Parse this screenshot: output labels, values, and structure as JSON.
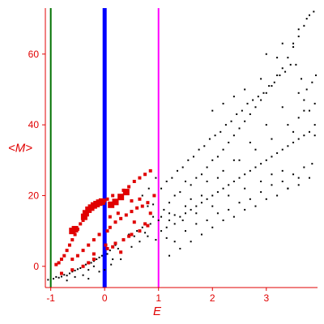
{
  "chart_data": {
    "type": "scatter",
    "title": "",
    "xlabel": "E",
    "ylabel": "<M>",
    "xlim": [
      -1.1,
      3.95
    ],
    "ylim": [
      -6,
      73
    ],
    "x_ticks": [
      -1,
      0,
      1,
      2,
      3
    ],
    "x_tick_labels": [
      "-1",
      "0",
      "1",
      "2",
      "3"
    ],
    "y_ticks": [
      0,
      20,
      40,
      60
    ],
    "y_tick_labels": [
      "0",
      "20",
      "40",
      "60"
    ],
    "grid": false,
    "legend": "none",
    "colors": {
      "axes": "#e00000",
      "black_points": "#000000",
      "red_points": "#e00000",
      "line_green": "#007000",
      "line_blue": "#0000ff",
      "line_magenta": "#ff00ff"
    },
    "vertical_lines": [
      {
        "x": -1.0,
        "color": "#007000"
      },
      {
        "x": 0.0,
        "color": "#0000ff"
      },
      {
        "x": 1.0,
        "color": "#ff00ff"
      }
    ],
    "series": [
      {
        "color": "#000000",
        "marker": "dot",
        "points": [
          [
            -1.05,
            -3.8
          ],
          [
            -0.95,
            -3.5
          ],
          [
            -0.9,
            -3.0
          ],
          [
            -0.85,
            -3.2
          ],
          [
            -0.8,
            -2.9
          ],
          [
            -0.75,
            -2.4
          ],
          [
            -0.7,
            -2.6
          ],
          [
            -0.65,
            -2.0
          ],
          [
            -0.6,
            -1.5
          ],
          [
            -0.55,
            -1.2
          ],
          [
            -0.5,
            -0.8
          ],
          [
            -0.45,
            -0.5
          ],
          [
            -0.4,
            0.2
          ],
          [
            -0.35,
            0.5
          ],
          [
            -0.3,
            -1.0
          ],
          [
            -0.25,
            1.0
          ],
          [
            -0.2,
            1.5
          ],
          [
            -0.15,
            2.0
          ],
          [
            -0.1,
            2.5
          ],
          [
            -0.05,
            3.0
          ],
          [
            0.05,
            3.5
          ],
          [
            0.1,
            4.5
          ],
          [
            0.15,
            2.0
          ],
          [
            0.2,
            6.0
          ],
          [
            0.25,
            5.0
          ],
          [
            0.35,
            7.5
          ],
          [
            0.45,
            9.0
          ],
          [
            0.55,
            8.5
          ],
          [
            0.6,
            10.0
          ],
          [
            0.7,
            11.0
          ],
          [
            0.75,
            9.5
          ],
          [
            0.85,
            12.0
          ],
          [
            -0.7,
            -4.0
          ],
          [
            -0.55,
            -3.0
          ],
          [
            -0.4,
            -2.5
          ],
          [
            -0.3,
            -3.5
          ],
          [
            -0.2,
            0.0
          ],
          [
            -0.1,
            -1.5
          ],
          [
            0.0,
            -1.0
          ],
          [
            0.12,
            0.5
          ],
          [
            0.3,
            2.0
          ],
          [
            0.5,
            5.5
          ],
          [
            0.65,
            7.0
          ],
          [
            0.8,
            8.5
          ],
          [
            0.95,
            7.5
          ],
          [
            0.9,
            14.0
          ],
          [
            0.8,
            17.0
          ],
          [
            0.7,
            20.0
          ],
          [
            0.82,
            22.0
          ],
          [
            0.95,
            25.0
          ],
          [
            0.9,
            17.5
          ],
          [
            1.0,
            13.0
          ],
          [
            1.05,
            14.0
          ],
          [
            1.1,
            16.0
          ],
          [
            1.2,
            18.0
          ],
          [
            1.3,
            20.0
          ],
          [
            1.4,
            21.0
          ],
          [
            1.5,
            24.0
          ],
          [
            1.6,
            23.0
          ],
          [
            1.7,
            25.0
          ],
          [
            1.8,
            26.0
          ],
          [
            1.9,
            28.0
          ],
          [
            2.0,
            30.0
          ],
          [
            2.1,
            31.0
          ],
          [
            2.2,
            33.0
          ],
          [
            2.3,
            35.0
          ],
          [
            2.4,
            37.0
          ],
          [
            2.5,
            39.0
          ],
          [
            2.6,
            41.0
          ],
          [
            2.7,
            43.0
          ],
          [
            2.8,
            45.0
          ],
          [
            2.9,
            47.0
          ],
          [
            3.0,
            49.0
          ],
          [
            3.1,
            51.0
          ],
          [
            3.2,
            54.0
          ],
          [
            3.3,
            56.0
          ],
          [
            3.4,
            59.0
          ],
          [
            3.5,
            62.0
          ],
          [
            3.6,
            65.0
          ],
          [
            3.7,
            68.0
          ],
          [
            3.8,
            71.0
          ],
          [
            3.88,
            72.0
          ],
          [
            1.05,
            22.0
          ],
          [
            1.15,
            24.0
          ],
          [
            1.25,
            25.0
          ],
          [
            1.35,
            27.0
          ],
          [
            1.45,
            28.0
          ],
          [
            1.55,
            30.0
          ],
          [
            1.65,
            31.0
          ],
          [
            1.75,
            33.0
          ],
          [
            1.85,
            34.0
          ],
          [
            1.95,
            36.0
          ],
          [
            2.05,
            37.0
          ],
          [
            2.15,
            38.0
          ],
          [
            2.25,
            40.0
          ],
          [
            2.35,
            41.0
          ],
          [
            2.45,
            43.0
          ],
          [
            2.55,
            44.0
          ],
          [
            2.65,
            46.0
          ],
          [
            2.75,
            47.0
          ],
          [
            2.85,
            48.0
          ],
          [
            2.95,
            49.0
          ],
          [
            3.05,
            51.0
          ],
          [
            3.15,
            52.0
          ],
          [
            3.25,
            54.0
          ],
          [
            3.35,
            55.0
          ],
          [
            3.45,
            57.0
          ],
          [
            3.55,
            57.0
          ],
          [
            3.65,
            53.0
          ],
          [
            3.75,
            50.0
          ],
          [
            3.85,
            52.0
          ],
          [
            3.92,
            54.0
          ],
          [
            1.05,
            10.0
          ],
          [
            1.15,
            11.0
          ],
          [
            1.2,
            13.0
          ],
          [
            1.3,
            12.0
          ],
          [
            1.4,
            14.0
          ],
          [
            1.5,
            15.0
          ],
          [
            1.6,
            16.0
          ],
          [
            1.7,
            17.0
          ],
          [
            1.8,
            18.0
          ],
          [
            1.9,
            19.0
          ],
          [
            2.0,
            20.0
          ],
          [
            2.1,
            21.0
          ],
          [
            2.2,
            22.0
          ],
          [
            2.3,
            23.0
          ],
          [
            2.4,
            24.0
          ],
          [
            2.5,
            25.0
          ],
          [
            2.6,
            26.0
          ],
          [
            2.7,
            27.0
          ],
          [
            2.8,
            28.0
          ],
          [
            2.9,
            29.0
          ],
          [
            3.0,
            30.0
          ],
          [
            3.1,
            31.0
          ],
          [
            3.2,
            32.0
          ],
          [
            3.3,
            33.0
          ],
          [
            3.4,
            34.0
          ],
          [
            3.5,
            35.0
          ],
          [
            3.6,
            36.0
          ],
          [
            3.7,
            37.0
          ],
          [
            3.8,
            38.0
          ],
          [
            3.9,
            37.0
          ],
          [
            1.15,
            8.0
          ],
          [
            1.3,
            7.0
          ],
          [
            1.5,
            10.0
          ],
          [
            1.7,
            12.0
          ],
          [
            1.9,
            13.0
          ],
          [
            2.1,
            15.0
          ],
          [
            2.3,
            16.0
          ],
          [
            2.5,
            18.0
          ],
          [
            2.7,
            19.0
          ],
          [
            2.9,
            21.0
          ],
          [
            3.1,
            23.0
          ],
          [
            3.3,
            24.0
          ],
          [
            3.5,
            26.0
          ],
          [
            3.7,
            28.0
          ],
          [
            3.85,
            29.0
          ],
          [
            1.2,
            3.0
          ],
          [
            1.4,
            5.0
          ],
          [
            1.6,
            7.0
          ],
          [
            1.8,
            9.0
          ],
          [
            2.0,
            11.0
          ],
          [
            2.2,
            13.0
          ],
          [
            2.4,
            14.0
          ],
          [
            2.6,
            16.0
          ],
          [
            2.8,
            17.0
          ],
          [
            3.0,
            19.0
          ],
          [
            3.2,
            20.0
          ],
          [
            3.4,
            22.0
          ],
          [
            3.6,
            23.0
          ],
          [
            3.8,
            25.0
          ],
          [
            1.3,
            14.5
          ],
          [
            1.6,
            19.0
          ],
          [
            1.9,
            24.0
          ],
          [
            2.2,
            27.0
          ],
          [
            2.5,
            30.0
          ],
          [
            2.8,
            33.0
          ],
          [
            3.1,
            36.0
          ],
          [
            3.4,
            40.0
          ],
          [
            3.7,
            44.0
          ],
          [
            3.9,
            46.0
          ],
          [
            2.0,
            44.0
          ],
          [
            2.2,
            46.0
          ],
          [
            2.4,
            48.0
          ],
          [
            2.6,
            50.0
          ],
          [
            2.9,
            53.0
          ],
          [
            3.2,
            59.0
          ],
          [
            3.5,
            63.0
          ],
          [
            3.75,
            70.0
          ],
          [
            3.6,
            49.0
          ],
          [
            3.3,
            45.0
          ],
          [
            3.0,
            40.0
          ],
          [
            2.7,
            35.0
          ],
          [
            2.4,
            30.0
          ],
          [
            2.1,
            25.0
          ],
          [
            1.8,
            20.0
          ],
          [
            1.5,
            17.0
          ],
          [
            1.2,
            15.0
          ],
          [
            3.9,
            40.0
          ],
          [
            3.8,
            44.0
          ],
          [
            3.7,
            47.0
          ],
          [
            3.6,
            42.0
          ],
          [
            3.5,
            38.0
          ],
          [
            3.3,
            27.0
          ],
          [
            3.1,
            26.0
          ],
          [
            2.9,
            24.0
          ],
          [
            2.6,
            22.0
          ],
          [
            2.3,
            20.0
          ],
          [
            2.0,
            17.0
          ],
          [
            1.7,
            15.0
          ],
          [
            1.45,
            13.0
          ],
          [
            3.0,
            60.0
          ],
          [
            3.3,
            63.0
          ],
          [
            3.6,
            67.0
          ],
          [
            3.4,
            22.0
          ],
          [
            3.6,
            25.0
          ]
        ]
      },
      {
        "color": "#e00000",
        "marker": "square-large",
        "points": [
          [
            -0.38,
            14.0
          ],
          [
            -0.35,
            15.0
          ],
          [
            -0.3,
            16.0
          ],
          [
            -0.25,
            16.6
          ],
          [
            -0.2,
            17.2
          ],
          [
            -0.15,
            17.6
          ],
          [
            -0.1,
            18.0
          ],
          [
            -0.05,
            18.3
          ],
          [
            0.12,
            17.4
          ],
          [
            0.2,
            18.2
          ],
          [
            0.3,
            19.6
          ],
          [
            0.4,
            21.0
          ],
          [
            -0.6,
            10.0
          ],
          [
            -0.55,
            10.5
          ]
        ]
      },
      {
        "color": "#e00000",
        "marker": "square-small",
        "points": [
          [
            -0.9,
            0.5
          ],
          [
            -0.85,
            1.0
          ],
          [
            -0.8,
            2.0
          ],
          [
            -0.75,
            3.0
          ],
          [
            -0.7,
            4.5
          ],
          [
            -0.65,
            6.0
          ],
          [
            -0.6,
            7.5
          ],
          [
            -0.55,
            9.0
          ],
          [
            -0.5,
            10.5
          ],
          [
            -0.45,
            12.0
          ],
          [
            -0.4,
            13.0
          ],
          [
            0.0,
            18.5
          ],
          [
            0.05,
            19.0
          ],
          [
            0.15,
            20.0
          ],
          [
            0.35,
            21.5
          ],
          [
            0.45,
            22.5
          ],
          [
            0.55,
            24.0
          ],
          [
            0.65,
            25.0
          ],
          [
            0.75,
            26.0
          ],
          [
            0.85,
            27.0
          ],
          [
            -0.6,
            2.0
          ],
          [
            -0.5,
            3.0
          ],
          [
            -0.4,
            4.5
          ],
          [
            -0.3,
            6.0
          ],
          [
            -0.2,
            7.5
          ],
          [
            -0.1,
            9.0
          ],
          [
            0.05,
            10.0
          ],
          [
            0.1,
            11.0
          ],
          [
            0.2,
            12.5
          ],
          [
            0.3,
            13.5
          ],
          [
            0.4,
            14.5
          ],
          [
            0.5,
            15.5
          ],
          [
            0.6,
            16.5
          ],
          [
            0.7,
            17.0
          ],
          [
            0.8,
            18.0
          ],
          [
            -0.8,
            -2.0
          ],
          [
            -0.6,
            -1.0
          ],
          [
            -0.4,
            0.0
          ],
          [
            -0.2,
            2.0
          ],
          [
            0.05,
            5.0
          ],
          [
            0.2,
            6.5
          ],
          [
            0.35,
            7.5
          ],
          [
            0.5,
            9.0
          ],
          [
            0.65,
            10.0
          ],
          [
            0.8,
            11.5
          ],
          [
            -0.3,
            1.0
          ],
          [
            0.15,
            5.5
          ],
          [
            0.45,
            8.5
          ],
          [
            0.75,
            12.0
          ],
          [
            -0.2,
            3.5
          ],
          [
            0.02,
            6.0
          ],
          [
            0.3,
            4.0
          ],
          [
            0.55,
            12.5
          ],
          [
            0.85,
            15.0
          ],
          [
            0.92,
            20.0
          ],
          [
            0.65,
            19.0
          ],
          [
            0.5,
            18.5
          ],
          [
            0.25,
            15.0
          ],
          [
            0.1,
            14.0
          ]
        ]
      }
    ]
  }
}
